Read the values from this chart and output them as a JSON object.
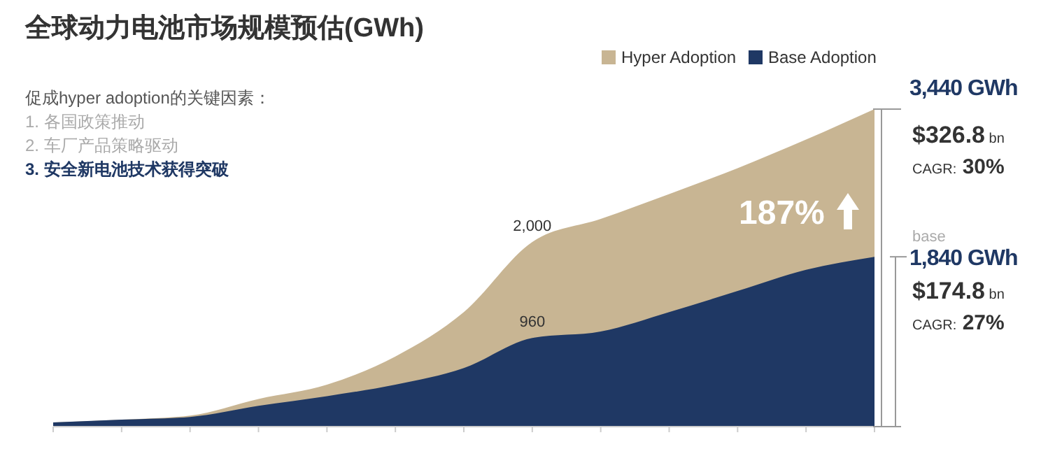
{
  "chart_data": {
    "type": "area",
    "title": "全球动力电池市场规模预估(GWh)",
    "categories": [
      null,
      null,
      null,
      null,
      null,
      null,
      null,
      null,
      null,
      null,
      null,
      null,
      null
    ],
    "series": [
      {
        "name": "Hyper Adoption",
        "color": "#c8b593",
        "values": [
          45,
          75,
          120,
          300,
          455,
          760,
          1240,
          2000,
          2250,
          2520,
          2800,
          3110,
          3440
        ],
        "value_labels": [
          null,
          null,
          null,
          null,
          null,
          null,
          null,
          "2,000",
          null,
          null,
          null,
          null,
          "3,440 GWh"
        ]
      },
      {
        "name": "Base Adoption",
        "color": "#1f3864",
        "values": [
          45,
          75,
          105,
          225,
          330,
          455,
          635,
          960,
          1030,
          1240,
          1470,
          1700,
          1840
        ],
        "value_labels": [
          null,
          null,
          null,
          null,
          null,
          null,
          null,
          "960",
          null,
          null,
          null,
          null,
          "1,840 GWh"
        ]
      }
    ],
    "legend": "top right",
    "annotations": [
      "促成hyper adoption的关键因素：",
      "1.  各国政策推动",
      "2.  车厂产品策略驱动",
      "3.  安全新电池技术获得突破",
      "187%",
      "$326.8 bn",
      "CAGR: 30%",
      "base",
      "$174.8 bn",
      "CAGR: 27%"
    ]
  }
}
